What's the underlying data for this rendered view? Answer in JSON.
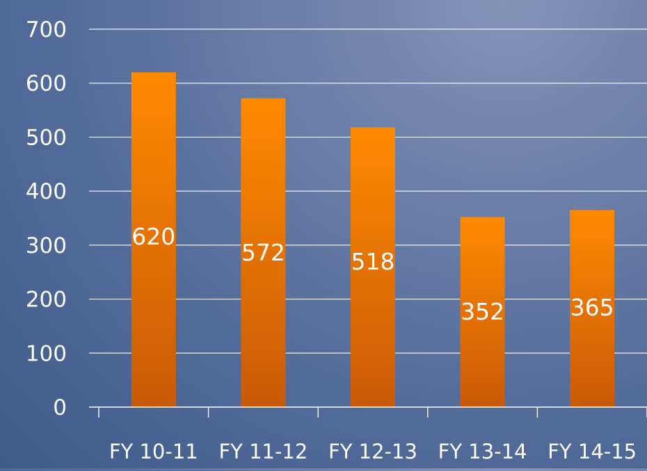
{
  "chart_data": {
    "type": "bar",
    "categories": [
      "FY 10-11",
      "FY 11-12",
      "FY 12-13",
      "FY 13-14",
      "FY 14-15"
    ],
    "values": [
      620,
      572,
      518,
      352,
      365
    ],
    "data_labels": [
      "620",
      "572",
      "518",
      "352",
      "365"
    ],
    "yticks": [
      "0",
      "100",
      "200",
      "300",
      "400",
      "500",
      "600",
      "700"
    ],
    "ylim": [
      0,
      700
    ],
    "grid": true,
    "legend": false,
    "colors": {
      "bar_top": "#ff8a00",
      "bar_bottom": "#c85a08",
      "gridline": "#ffffff",
      "text": "#ffffff"
    }
  }
}
